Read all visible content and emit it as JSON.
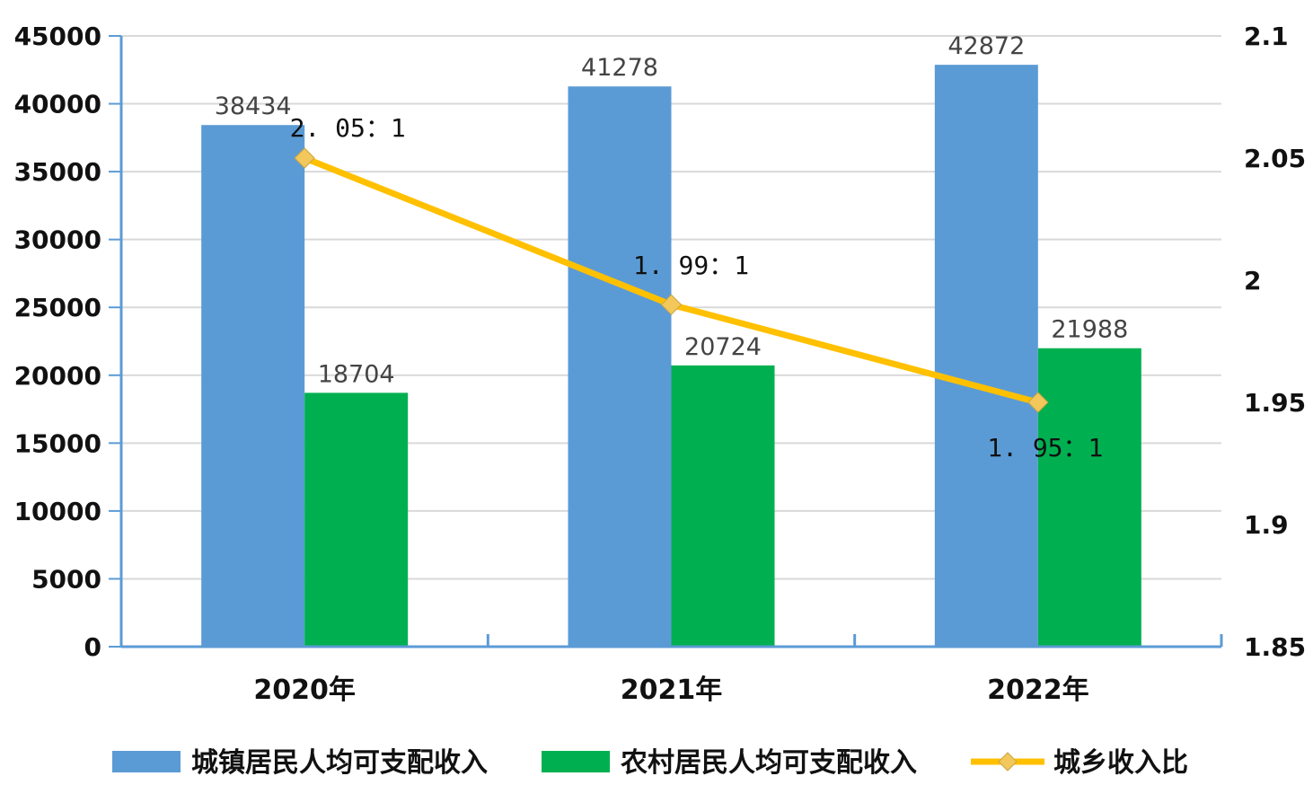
{
  "chart_data": {
    "type": "bar",
    "categories": [
      "2020年",
      "2021年",
      "2022年"
    ],
    "series": [
      {
        "name": "城镇居民人均可支配收入",
        "values": [
          38434,
          41278,
          42872
        ],
        "color": "#5b9bd5",
        "axis": "left"
      },
      {
        "name": "农村居民人均可支配收入",
        "values": [
          18704,
          20724,
          21988
        ],
        "color": "#00b050",
        "axis": "left"
      },
      {
        "name": "城乡收入比",
        "type": "line",
        "values": [
          2.05,
          1.99,
          1.95
        ],
        "labels": [
          "2. 05：1",
          "1. 99：1",
          "1. 95：1"
        ],
        "color": "#ffc000",
        "marker_color": "#f2c75c",
        "axis": "right"
      }
    ],
    "y_left": {
      "min": 0,
      "max": 45000,
      "step": 5000,
      "ticks": [
        "0",
        "5000",
        "10000",
        "15000",
        "20000",
        "25000",
        "30000",
        "35000",
        "40000",
        "45000"
      ]
    },
    "y_right": {
      "min": 1.85,
      "max": 2.1,
      "ticks": [
        "1.85",
        "1.9",
        "1.95",
        "2",
        "2.05",
        "2.1"
      ]
    },
    "grid": true,
    "legend_position": "bottom",
    "axis_color": "#5b9bd5",
    "grid_color": "#d9d9d9"
  }
}
